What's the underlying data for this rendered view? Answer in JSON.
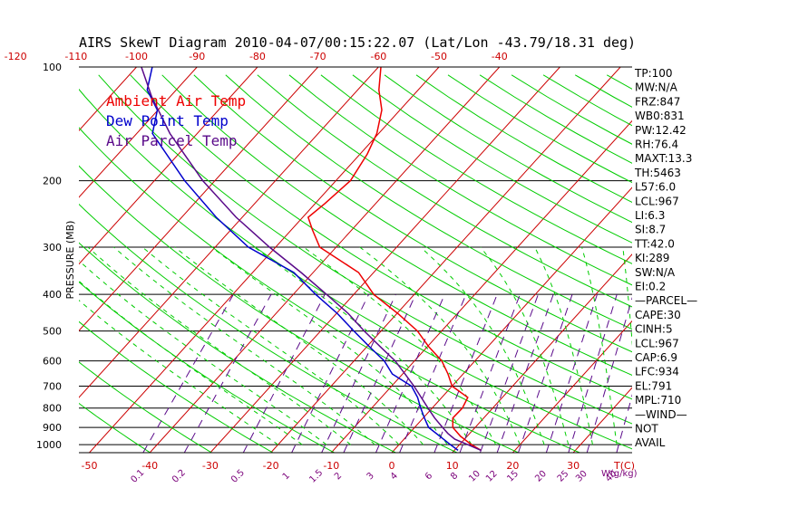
{
  "title": "AIRS SkewT Diagram 2010-04-07/00:15:22.07 (Lat/Lon -43.79/18.31 deg)",
  "colors": {
    "ambient": "#ee0000",
    "dewpoint": "#0000cc",
    "parcel": "#5a0a8a",
    "isotherm": "#cc0000",
    "dry_adiabat": "#00cc00",
    "moist_adiabat": "#00cc00",
    "mixing_ratio": "#5a0a8a",
    "isobar": "#000000"
  },
  "chart_data": {
    "type": "line",
    "title": "AIRS SkewT Diagram 2010-04-07/00:15:22.07 (Lat/Lon -43.79/18.31 deg)",
    "ylabel": "PRESSURE (MB)",
    "y_scale": "log",
    "ylim": [
      1050,
      100
    ],
    "pressure_ticks": [
      100,
      200,
      300,
      400,
      500,
      600,
      700,
      800,
      900,
      1000
    ],
    "top_temp_ticks": [
      -120,
      -110,
      -100,
      -90,
      -80,
      -70,
      -60,
      -50,
      -40
    ],
    "bottom_temp_ticks": [
      -50,
      -40,
      -30,
      -20,
      -10,
      0,
      10,
      20,
      30
    ],
    "bottom_temp_unit": "T(C)",
    "mixing_ratio_ticks": [
      "0.1",
      "0.2",
      "0.5",
      "1",
      "1.5",
      "2",
      "3",
      "4",
      "6",
      "8",
      "10",
      "12",
      "15",
      "20",
      "25",
      "30",
      "40"
    ],
    "mixing_ratio_unit": "W(g/kg)",
    "legend": [
      {
        "name": "Ambient Air Temp",
        "color": "#ee0000"
      },
      {
        "name": "Dew Point Temp",
        "color": "#0000cc"
      },
      {
        "name": "Air Parcel Temp",
        "color": "#5a0a8a"
      }
    ],
    "legend_position": "top-left",
    "series": [
      {
        "name": "Ambient Air Temp",
        "points": [
          {
            "p": 1035,
            "t": 14.4
          },
          {
            "p": 1000,
            "t": 12.0
          },
          {
            "p": 950,
            "t": 8.9
          },
          {
            "p": 900,
            "t": 6.3
          },
          {
            "p": 850,
            "t": 4.9
          },
          {
            "p": 800,
            "t": 5.0
          },
          {
            "p": 750,
            "t": 4.3
          },
          {
            "p": 700,
            "t": 0.0
          },
          {
            "p": 650,
            "t": -2.5
          },
          {
            "p": 600,
            "t": -5.5
          },
          {
            "p": 550,
            "t": -9.8
          },
          {
            "p": 500,
            "t": -14.0
          },
          {
            "p": 450,
            "t": -19.8
          },
          {
            "p": 400,
            "t": -26.7
          },
          {
            "p": 350,
            "t": -32.5
          },
          {
            "p": 300,
            "t": -42.7
          },
          {
            "p": 270,
            "t": -46.5
          },
          {
            "p": 250,
            "t": -49.1
          },
          {
            "p": 230,
            "t": -48.4
          },
          {
            "p": 200,
            "t": -47.6
          },
          {
            "p": 170,
            "t": -48.8
          },
          {
            "p": 150,
            "t": -50.3
          },
          {
            "p": 130,
            "t": -53.0
          },
          {
            "p": 115,
            "t": -56.5
          },
          {
            "p": 100,
            "t": -59.6
          }
        ]
      },
      {
        "name": "Dew Point Temp",
        "points": [
          {
            "p": 1035,
            "t": 10.6
          },
          {
            "p": 1000,
            "t": 8.5
          },
          {
            "p": 950,
            "t": 5.5
          },
          {
            "p": 900,
            "t": 2.3
          },
          {
            "p": 850,
            "t": 0.2
          },
          {
            "p": 800,
            "t": -1.9
          },
          {
            "p": 750,
            "t": -4.0
          },
          {
            "p": 700,
            "t": -6.7
          },
          {
            "p": 650,
            "t": -11.7
          },
          {
            "p": 600,
            "t": -15.0
          },
          {
            "p": 550,
            "t": -19.6
          },
          {
            "p": 500,
            "t": -24.5
          },
          {
            "p": 450,
            "t": -29.8
          },
          {
            "p": 400,
            "t": -36.3
          },
          {
            "p": 350,
            "t": -43.2
          },
          {
            "p": 300,
            "t": -54.5
          },
          {
            "p": 250,
            "t": -64.3
          },
          {
            "p": 200,
            "t": -75.0
          },
          {
            "p": 150,
            "t": -87.4
          },
          {
            "p": 130,
            "t": -90.1
          },
          {
            "p": 115,
            "t": -94.8
          },
          {
            "p": 100,
            "t": -97.4
          }
        ]
      },
      {
        "name": "Air Parcel Temp",
        "points": [
          {
            "p": 1035,
            "t": 14.4
          },
          {
            "p": 1000,
            "t": 11.4
          },
          {
            "p": 967,
            "t": 8.4
          },
          {
            "p": 934,
            "t": 6.4
          },
          {
            "p": 900,
            "t": 4.6
          },
          {
            "p": 850,
            "t": 1.9
          },
          {
            "p": 800,
            "t": -0.7
          },
          {
            "p": 750,
            "t": -3.4
          },
          {
            "p": 700,
            "t": -6.3
          },
          {
            "p": 650,
            "t": -9.6
          },
          {
            "p": 600,
            "t": -13.2
          },
          {
            "p": 550,
            "t": -17.8
          },
          {
            "p": 500,
            "t": -22.8
          },
          {
            "p": 450,
            "t": -28.0
          },
          {
            "p": 400,
            "t": -34.5
          },
          {
            "p": 350,
            "t": -42.0
          },
          {
            "p": 300,
            "t": -51.0
          },
          {
            "p": 250,
            "t": -61.0
          },
          {
            "p": 200,
            "t": -72.0
          },
          {
            "p": 150,
            "t": -84.5
          },
          {
            "p": 120,
            "t": -93.0
          },
          {
            "p": 100,
            "t": -99.2
          }
        ]
      }
    ]
  },
  "stats": [
    "TP:100",
    "MW:N/A",
    "FRZ:847",
    "WB0:831",
    "PW:12.42",
    "RH:76.4",
    "MAXT:13.3",
    "TH:5463",
    "L57:6.0",
    "LCL:967",
    "LI:6.3",
    "SI:8.7",
    "TT:42.0",
    "KI:289",
    "SW:N/A",
    "EI:0.2",
    "—PARCEL—",
    "CAPE:30",
    "CINH:5",
    "LCL:967",
    "CAP:6.9",
    "LFC:934",
    "EL:791",
    "MPL:710",
    "—WIND—",
    "NOT",
    "AVAIL"
  ]
}
